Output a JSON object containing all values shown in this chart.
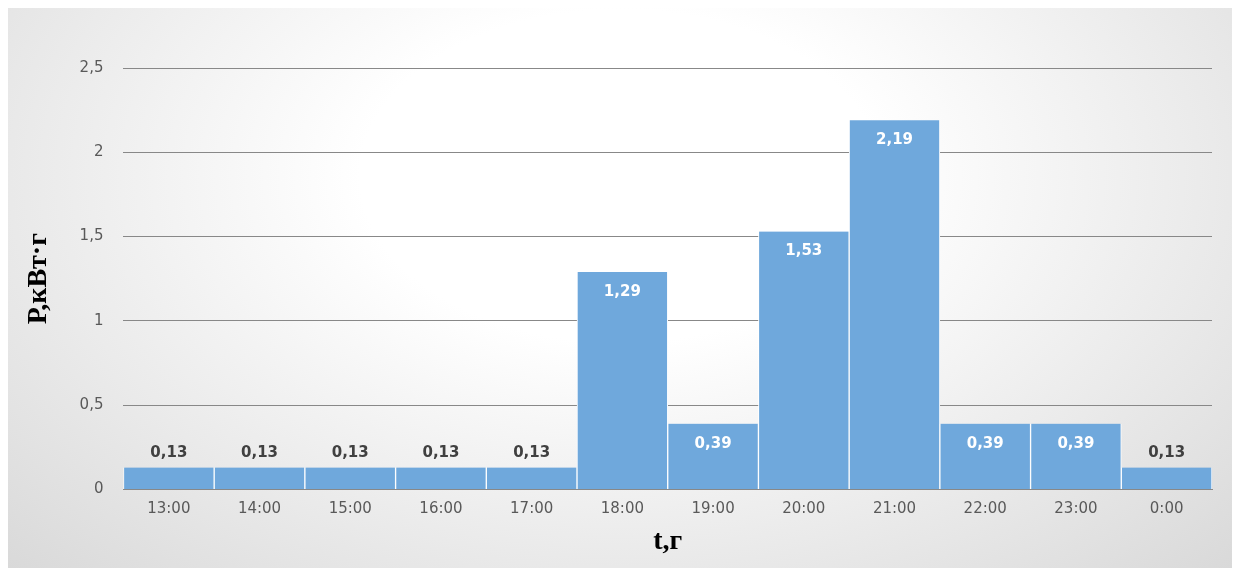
{
  "chart_data": {
    "type": "bar",
    "xlabel": "t,г",
    "ylabel": "Р,кВт·г",
    "categories": [
      "13:00",
      "14:00",
      "15:00",
      "16:00",
      "17:00",
      "18:00",
      "19:00",
      "20:00",
      "21:00",
      "22:00",
      "23:00",
      "0:00"
    ],
    "values": [
      0.13,
      0.13,
      0.13,
      0.13,
      0.13,
      1.29,
      0.39,
      1.53,
      2.19,
      0.39,
      0.39,
      0.13
    ],
    "value_labels": [
      "0,13",
      "0,13",
      "0,13",
      "0,13",
      "0,13",
      "1,29",
      "0,39",
      "1,53",
      "2,19",
      "0,39",
      "0,39",
      "0,13"
    ],
    "color": "#6fa8dc",
    "ylim": [
      0,
      2.5
    ],
    "yticks": [
      0,
      {
        "value": 0.5,
        "label": "0,5"
      },
      1,
      {
        "value": 1.5,
        "label": "1,5"
      },
      2,
      {
        "value": 2.5,
        "label": "2,5"
      }
    ],
    "grid": "y",
    "legend": false
  }
}
